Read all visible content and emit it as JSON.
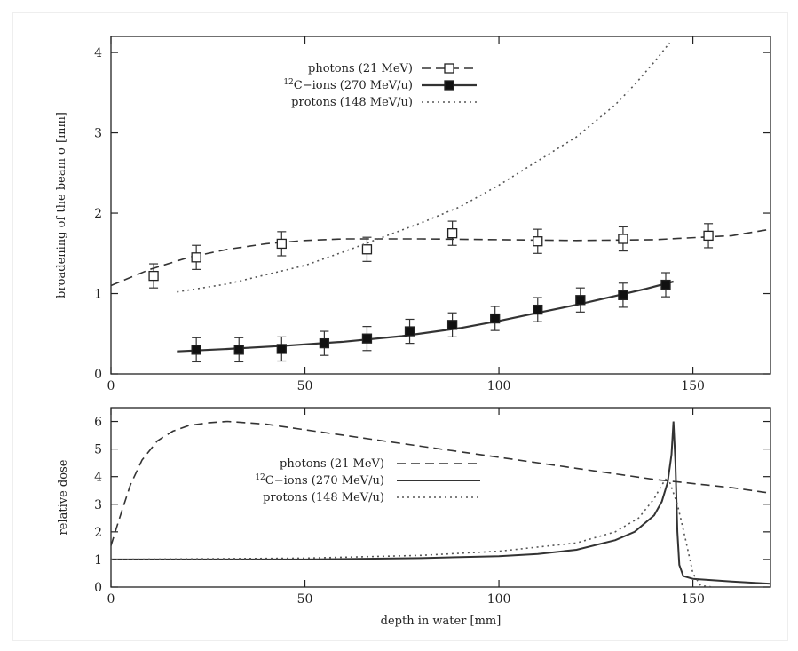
{
  "chart_data": [
    {
      "type": "line",
      "panel": "top",
      "xlabel": "",
      "ylabel": "broadening of the beam σ [mm]",
      "xlim": [
        0,
        170
      ],
      "ylim": [
        0,
        4.2
      ],
      "xticks": [
        "0",
        "50",
        "100",
        "150"
      ],
      "yticks": [
        "0",
        "1",
        "2",
        "3",
        "4"
      ],
      "legend_position": "top-center",
      "series": [
        {
          "name": "photons (21 MeV)",
          "style": "dashed-with-open-squares",
          "curve": [
            [
              0,
              1.1
            ],
            [
              10,
              1.3
            ],
            [
              20,
              1.45
            ],
            [
              30,
              1.55
            ],
            [
              40,
              1.62
            ],
            [
              50,
              1.66
            ],
            [
              60,
              1.68
            ],
            [
              80,
              1.68
            ],
            [
              100,
              1.67
            ],
            [
              120,
              1.66
            ],
            [
              140,
              1.67
            ],
            [
              160,
              1.72
            ],
            [
              170,
              1.8
            ]
          ],
          "points": [
            [
              11,
              1.22
            ],
            [
              22,
              1.45
            ],
            [
              44,
              1.62
            ],
            [
              66,
              1.55
            ],
            [
              88,
              1.75
            ],
            [
              110,
              1.65
            ],
            [
              132,
              1.68
            ],
            [
              154,
              1.72
            ]
          ],
          "errors": [
            0.15,
            0.15,
            0.15,
            0.15,
            0.15,
            0.15,
            0.15,
            0.15
          ]
        },
        {
          "name": "12C-ions (270 MeV/u)",
          "legend_sup": "12",
          "legend_rest": "C−ions (270 MeV/u)",
          "style": "solid-with-filled-squares",
          "curve": [
            [
              17,
              0.28
            ],
            [
              30,
              0.31
            ],
            [
              45,
              0.35
            ],
            [
              60,
              0.4
            ],
            [
              75,
              0.47
            ],
            [
              90,
              0.57
            ],
            [
              100,
              0.66
            ],
            [
              110,
              0.76
            ],
            [
              120,
              0.86
            ],
            [
              130,
              0.97
            ],
            [
              138,
              1.06
            ],
            [
              145,
              1.15
            ]
          ],
          "points": [
            [
              22,
              0.3
            ],
            [
              33,
              0.3
            ],
            [
              44,
              0.31
            ],
            [
              55,
              0.38
            ],
            [
              66,
              0.44
            ],
            [
              77,
              0.53
            ],
            [
              88,
              0.61
            ],
            [
              99,
              0.69
            ],
            [
              110,
              0.8
            ],
            [
              121,
              0.92
            ],
            [
              132,
              0.98
            ],
            [
              143,
              1.11
            ]
          ],
          "errors": [
            0.15,
            0.15,
            0.15,
            0.15,
            0.15,
            0.15,
            0.15,
            0.15,
            0.15,
            0.15,
            0.15,
            0.15
          ]
        },
        {
          "name": "protons (148 MeV/u)",
          "style": "dotted",
          "curve": [
            [
              17,
              1.02
            ],
            [
              30,
              1.12
            ],
            [
              50,
              1.35
            ],
            [
              60,
              1.52
            ],
            [
              70,
              1.7
            ],
            [
              80,
              1.88
            ],
            [
              90,
              2.08
            ],
            [
              100,
              2.35
            ],
            [
              110,
              2.65
            ],
            [
              120,
              2.95
            ],
            [
              130,
              3.35
            ],
            [
              135,
              3.6
            ],
            [
              140,
              3.88
            ],
            [
              144,
              4.12
            ]
          ]
        }
      ]
    },
    {
      "type": "line",
      "panel": "bottom",
      "xlabel": "depth in water [mm]",
      "ylabel": "relative dose",
      "xlim": [
        0,
        170
      ],
      "ylim": [
        0,
        6.5
      ],
      "xticks": [
        "0",
        "50",
        "100",
        "150"
      ],
      "yticks": [
        "0",
        "1",
        "2",
        "3",
        "4",
        "5",
        "6"
      ],
      "legend_position": "center",
      "series": [
        {
          "name": "photons (21 MeV)",
          "style": "dashed",
          "curve": [
            [
              0,
              1.5
            ],
            [
              2,
              2.4
            ],
            [
              5,
              3.7
            ],
            [
              8,
              4.6
            ],
            [
              12,
              5.3
            ],
            [
              16,
              5.65
            ],
            [
              20,
              5.85
            ],
            [
              25,
              5.95
            ],
            [
              30,
              6.0
            ],
            [
              40,
              5.9
            ],
            [
              50,
              5.7
            ],
            [
              60,
              5.5
            ],
            [
              80,
              5.1
            ],
            [
              100,
              4.7
            ],
            [
              120,
              4.3
            ],
            [
              140,
              3.9
            ],
            [
              160,
              3.6
            ],
            [
              170,
              3.4
            ]
          ]
        },
        {
          "name": "12C-ions (270 MeV/u)",
          "legend_sup": "12",
          "legend_rest": "C−ions (270 MeV/u)",
          "style": "solid",
          "curve": [
            [
              0,
              1.0
            ],
            [
              50,
              1.0
            ],
            [
              80,
              1.05
            ],
            [
              100,
              1.12
            ],
            [
              110,
              1.2
            ],
            [
              120,
              1.35
            ],
            [
              130,
              1.7
            ],
            [
              135,
              2.0
            ],
            [
              140,
              2.6
            ],
            [
              142,
              3.1
            ],
            [
              143.5,
              3.8
            ],
            [
              144.5,
              4.8
            ],
            [
              145,
              6.0
            ],
            [
              145.5,
              4.5
            ],
            [
              146,
              2.0
            ],
            [
              146.5,
              0.8
            ],
            [
              147.5,
              0.4
            ],
            [
              150,
              0.3
            ],
            [
              160,
              0.2
            ],
            [
              170,
              0.12
            ]
          ]
        },
        {
          "name": "protons (148 MeV/u)",
          "style": "dotted",
          "curve": [
            [
              0,
              1.0
            ],
            [
              50,
              1.05
            ],
            [
              80,
              1.15
            ],
            [
              100,
              1.3
            ],
            [
              120,
              1.6
            ],
            [
              130,
              2.0
            ],
            [
              136,
              2.5
            ],
            [
              140,
              3.2
            ],
            [
              142,
              3.7
            ],
            [
              143,
              3.9
            ],
            [
              144,
              3.8
            ],
            [
              146,
              3.0
            ],
            [
              148,
              1.8
            ],
            [
              150,
              0.5
            ],
            [
              152,
              0.05
            ],
            [
              155,
              0.0
            ]
          ]
        }
      ]
    }
  ],
  "colors": {
    "axis": "#222222",
    "line": "#333333",
    "dotted": "#555555",
    "frame": "#eeeeee"
  }
}
